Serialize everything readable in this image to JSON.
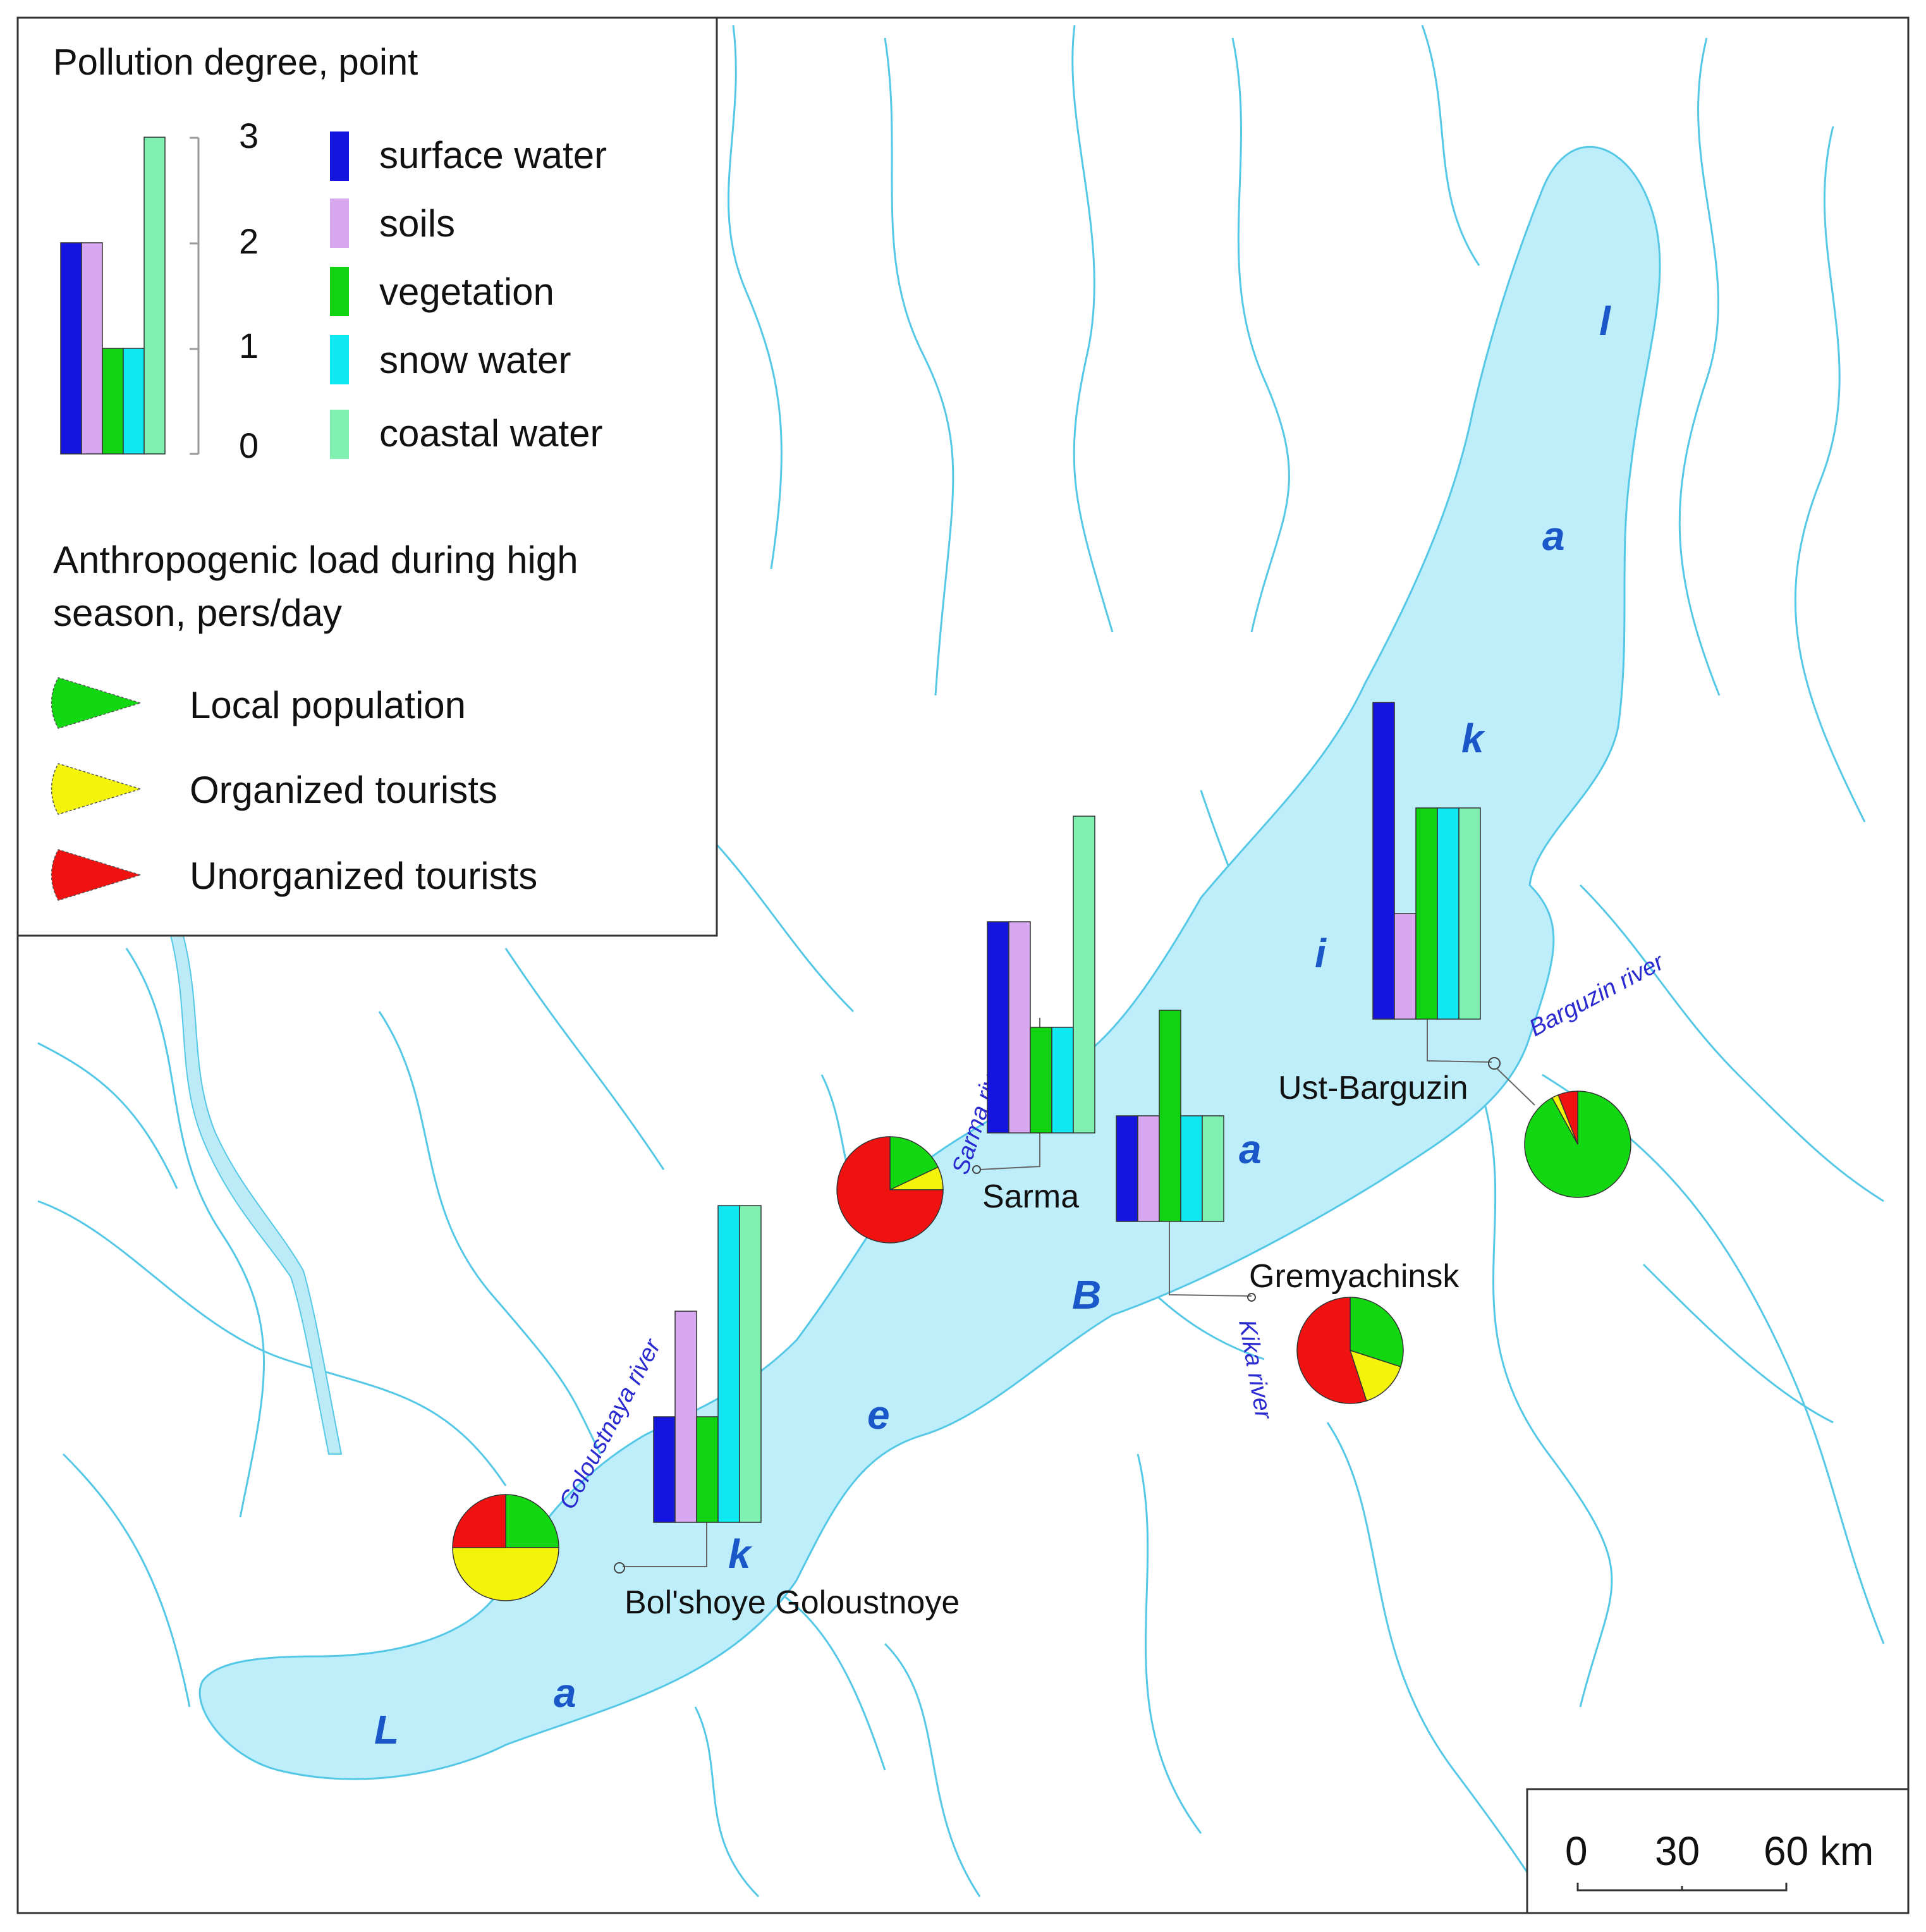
{
  "legend": {
    "pollution_title": "Pollution degree, point",
    "axis_ticks": [
      "0",
      "1",
      "2",
      "3"
    ],
    "example_values": [
      2,
      2,
      1,
      1,
      3
    ],
    "categories": [
      {
        "label": "surface water",
        "color": "#1515e0"
      },
      {
        "label": "soils",
        "color": "#d7a8f0"
      },
      {
        "label": "vegetation",
        "color": "#12d312"
      },
      {
        "label": "snow water",
        "color": "#11e9f2"
      },
      {
        "label": "coastal water",
        "color": "#7ff0b0"
      }
    ],
    "load_title_line1": "Anthropogenic load during high",
    "load_title_line2": "season, pers/day",
    "load_categories": [
      {
        "label": "Local population",
        "color": "#11d811"
      },
      {
        "label": "Organized tourists",
        "color": "#f3f30c"
      },
      {
        "label": "Unorganized tourists",
        "color": "#f01111"
      }
    ]
  },
  "lake_letters": [
    "L",
    "a",
    "k",
    "e",
    "B",
    "a",
    "i",
    "k",
    "a",
    "l"
  ],
  "rivers": {
    "goloustnaya": "Goloustnaya river",
    "sarma": "Sarma river",
    "kika": "Kika river",
    "barguzin": "Barguzin river"
  },
  "places": {
    "bolshoye": "Bol'shoye Goloustnoye",
    "sarma": "Sarma",
    "gremyachinsk": "Gremyachinsk",
    "ust_barguzin": "Ust-Barguzin"
  },
  "scale_bar": {
    "labels": [
      "0",
      "30",
      "60 km"
    ]
  },
  "chart_data": [
    {
      "type": "bar",
      "location": "Bol'shoye Goloustnoye",
      "categories": [
        "surface water",
        "soils",
        "vegetation",
        "snow water",
        "coastal water"
      ],
      "values": [
        1,
        2,
        1,
        3,
        3
      ],
      "ylim": [
        0,
        3
      ]
    },
    {
      "type": "pie",
      "location": "Bol'shoye Goloustnoye",
      "labels": [
        "Local population",
        "Organized tourists",
        "Unorganized tourists"
      ],
      "values": [
        25,
        50,
        25
      ]
    },
    {
      "type": "bar",
      "location": "Sarma",
      "categories": [
        "surface water",
        "soils",
        "vegetation",
        "snow water",
        "coastal water"
      ],
      "values": [
        2,
        2,
        1,
        1,
        3
      ],
      "ylim": [
        0,
        3
      ]
    },
    {
      "type": "pie",
      "location": "Sarma",
      "labels": [
        "Local population",
        "Organized tourists",
        "Unorganized tourists"
      ],
      "values": [
        18,
        7,
        75
      ]
    },
    {
      "type": "bar",
      "location": "Gremyachinsk",
      "categories": [
        "surface water",
        "soils",
        "vegetation",
        "snow water",
        "coastal water"
      ],
      "values": [
        1,
        1,
        2,
        1,
        1
      ],
      "ylim": [
        0,
        3
      ]
    },
    {
      "type": "pie",
      "location": "Gremyachinsk",
      "labels": [
        "Local population",
        "Organized tourists",
        "Unorganized tourists"
      ],
      "values": [
        30,
        15,
        55
      ]
    },
    {
      "type": "bar",
      "location": "Ust-Barguzin",
      "categories": [
        "surface water",
        "soils",
        "vegetation",
        "snow water",
        "coastal water"
      ],
      "values": [
        3,
        1,
        2,
        2,
        2
      ],
      "ylim": [
        0,
        3
      ]
    },
    {
      "type": "pie",
      "location": "Ust-Barguzin",
      "labels": [
        "Local population",
        "Organized tourists",
        "Unorganized tourists"
      ],
      "values": [
        92,
        2,
        6
      ]
    }
  ]
}
